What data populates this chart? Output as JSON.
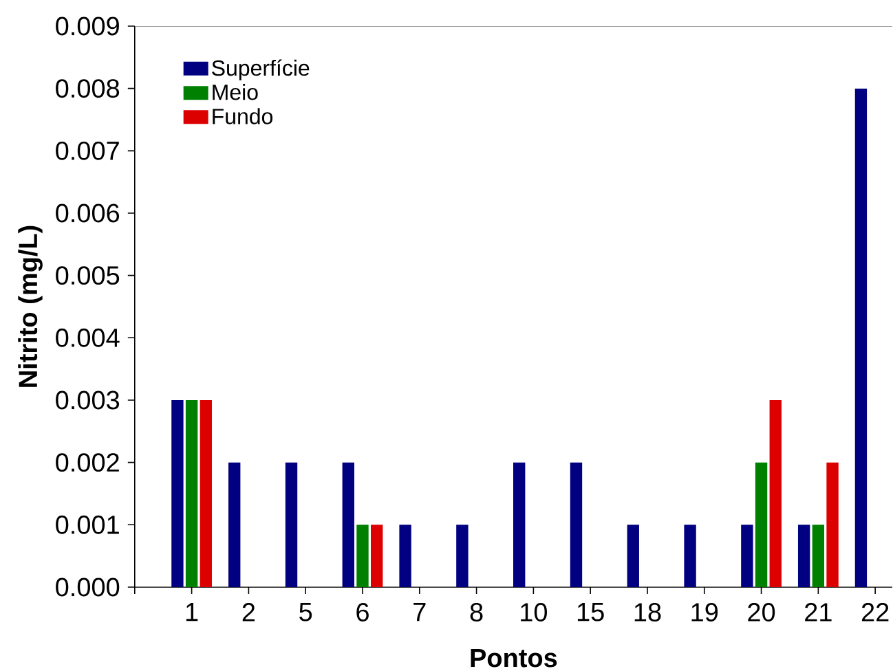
{
  "chart_data": {
    "type": "bar",
    "xlabel": "Pontos",
    "ylabel": "Nitrito (mg/L)",
    "categories": [
      "1",
      "2",
      "5",
      "6",
      "7",
      "8",
      "10",
      "15",
      "18",
      "19",
      "20",
      "21",
      "22"
    ],
    "series": [
      {
        "name": "Superfície",
        "color": "#000080",
        "values": [
          0.003,
          0.002,
          0.002,
          0.002,
          0.001,
          0.001,
          0.002,
          0.002,
          0.001,
          0.001,
          0.001,
          0.001,
          0.008
        ]
      },
      {
        "name": "Meio",
        "color": "#008000",
        "values": [
          0.003,
          null,
          null,
          0.001,
          null,
          null,
          null,
          null,
          null,
          null,
          0.002,
          0.001,
          null
        ]
      },
      {
        "name": "Fundo",
        "color": "#dd0000",
        "values": [
          0.003,
          null,
          null,
          0.001,
          null,
          null,
          null,
          null,
          null,
          null,
          0.003,
          0.002,
          null
        ]
      }
    ],
    "ylim": [
      0,
      0.009
    ],
    "yticks": [
      {
        "value": 0,
        "label": "0.000"
      },
      {
        "value": 0.001,
        "label": "0.001"
      },
      {
        "value": 0.002,
        "label": "0.002"
      },
      {
        "value": 0.003,
        "label": "0.003"
      },
      {
        "value": 0.004,
        "label": "0.004"
      },
      {
        "value": 0.005,
        "label": "0.005"
      },
      {
        "value": 0.006,
        "label": "0.006"
      },
      {
        "value": 0.007,
        "label": "0.007"
      },
      {
        "value": 0.008,
        "label": "0.008"
      },
      {
        "value": 0.009,
        "label": "0.009"
      }
    ],
    "legend": "top left"
  }
}
